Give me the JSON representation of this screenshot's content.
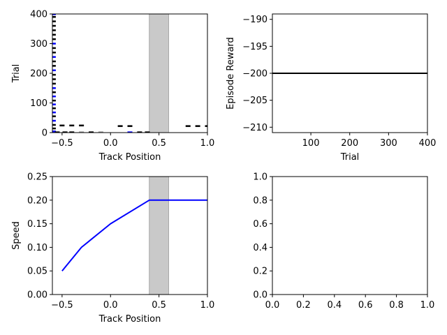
{
  "colors": {
    "mark_black": "#000000",
    "mark_blue": "#0000ff",
    "mark_gray": "#999999",
    "goal_region": "#c9c9c9",
    "goal_region_edge": "#a8a8a8"
  },
  "chart_data": [
    {
      "type": "scatter",
      "xlabel": "Track Position",
      "ylabel": "Trial",
      "xlim": [
        -0.6,
        1.0
      ],
      "ylim": [
        0,
        400
      ],
      "xticks": [
        -0.5,
        0.0,
        0.5,
        1.0
      ],
      "xtick_labels": [
        "−0.5",
        "0.0",
        "0.5",
        "1.0"
      ],
      "yticks": [
        0,
        100,
        200,
        300,
        400
      ],
      "ytick_labels": [
        "0",
        "100",
        "200",
        "300",
        "400"
      ],
      "shaded_span": [
        0.4,
        0.6
      ],
      "marker": "horizontal-dash",
      "points": [
        {
          "x": -0.59,
          "y": 4,
          "color": "blue"
        },
        {
          "x": -0.59,
          "y": 14,
          "color": "black"
        },
        {
          "x": -0.59,
          "y": 26,
          "color": "black"
        },
        {
          "x": -0.59,
          "y": 40,
          "color": "blue"
        },
        {
          "x": -0.59,
          "y": 55,
          "color": "black"
        },
        {
          "x": -0.59,
          "y": 68,
          "color": "blue"
        },
        {
          "x": -0.59,
          "y": 82,
          "color": "black"
        },
        {
          "x": -0.59,
          "y": 95,
          "color": "blue"
        },
        {
          "x": -0.59,
          "y": 108,
          "color": "black"
        },
        {
          "x": -0.59,
          "y": 122,
          "color": "blue"
        },
        {
          "x": -0.59,
          "y": 136,
          "color": "black"
        },
        {
          "x": -0.59,
          "y": 150,
          "color": "blue"
        },
        {
          "x": -0.59,
          "y": 165,
          "color": "black"
        },
        {
          "x": -0.59,
          "y": 180,
          "color": "black"
        },
        {
          "x": -0.59,
          "y": 195,
          "color": "black"
        },
        {
          "x": -0.59,
          "y": 210,
          "color": "blue"
        },
        {
          "x": -0.59,
          "y": 225,
          "color": "black"
        },
        {
          "x": -0.59,
          "y": 240,
          "color": "black"
        },
        {
          "x": -0.59,
          "y": 255,
          "color": "blue"
        },
        {
          "x": -0.59,
          "y": 270,
          "color": "black"
        },
        {
          "x": -0.59,
          "y": 285,
          "color": "black"
        },
        {
          "x": -0.59,
          "y": 300,
          "color": "blue"
        },
        {
          "x": -0.59,
          "y": 315,
          "color": "black"
        },
        {
          "x": -0.59,
          "y": 330,
          "color": "black"
        },
        {
          "x": -0.59,
          "y": 345,
          "color": "black"
        },
        {
          "x": -0.59,
          "y": 360,
          "color": "black"
        },
        {
          "x": -0.59,
          "y": 375,
          "color": "black"
        },
        {
          "x": -0.59,
          "y": 390,
          "color": "black"
        },
        {
          "x": -0.59,
          "y": 399,
          "color": "blue"
        },
        {
          "x": -0.55,
          "y": 1,
          "color": "black"
        },
        {
          "x": -0.47,
          "y": 1,
          "color": "black"
        },
        {
          "x": -0.4,
          "y": 1,
          "color": "black"
        },
        {
          "x": -0.3,
          "y": 1,
          "color": "gray"
        },
        {
          "x": -0.2,
          "y": 1,
          "color": "black"
        },
        {
          "x": -0.1,
          "y": 1,
          "color": "gray"
        },
        {
          "x": 0.2,
          "y": 1,
          "color": "blue"
        },
        {
          "x": 0.3,
          "y": 1,
          "color": "black"
        },
        {
          "x": 0.38,
          "y": 1,
          "color": "black"
        },
        {
          "x": -0.5,
          "y": 24,
          "color": "black"
        },
        {
          "x": -0.4,
          "y": 24,
          "color": "black"
        },
        {
          "x": -0.3,
          "y": 24,
          "color": "black"
        },
        {
          "x": 0.1,
          "y": 22,
          "color": "black"
        },
        {
          "x": 0.2,
          "y": 22,
          "color": "black"
        },
        {
          "x": 0.8,
          "y": 22,
          "color": "black"
        },
        {
          "x": 0.9,
          "y": 22,
          "color": "black"
        },
        {
          "x": 1.0,
          "y": 22,
          "color": "black"
        }
      ]
    },
    {
      "type": "line",
      "xlabel": "Trial",
      "ylabel": "Episode Reward",
      "xlim": [
        1,
        400
      ],
      "ylim": [
        -211,
        -189
      ],
      "xticks": [
        100,
        200,
        300,
        400
      ],
      "xtick_labels": [
        "100",
        "200",
        "300",
        "400"
      ],
      "yticks": [
        -210,
        -205,
        -200,
        -195,
        -190
      ],
      "ytick_labels": [
        "−210",
        "−205",
        "−200",
        "−195",
        "−190"
      ],
      "series": [
        {
          "x": [
            1,
            50,
            100,
            150,
            200,
            250,
            300,
            350,
            400
          ],
          "y": [
            -200,
            -200,
            -200,
            -200,
            -200,
            -200,
            -200,
            -200,
            -200
          ],
          "color": "black"
        }
      ]
    },
    {
      "type": "line",
      "xlabel": "Track Position",
      "ylabel": "Speed",
      "xlim": [
        -0.6,
        1.0
      ],
      "ylim": [
        0,
        0.25
      ],
      "xticks": [
        -0.5,
        0.0,
        0.5,
        1.0
      ],
      "xtick_labels": [
        "−0.5",
        "0.0",
        "0.5",
        "1.0"
      ],
      "yticks": [
        0,
        0.05,
        0.1,
        0.15,
        0.2,
        0.25
      ],
      "ytick_labels": [
        "0.00",
        "0.05",
        "0.10",
        "0.15",
        "0.20",
        "0.25"
      ],
      "shaded_span": [
        0.4,
        0.6
      ],
      "series": [
        {
          "x": [
            -0.5,
            -0.3,
            0.0,
            0.4,
            1.0
          ],
          "y": [
            0.05,
            0.1,
            0.15,
            0.2,
            0.2
          ],
          "color": "blue"
        }
      ]
    },
    {
      "type": "line",
      "xlabel": "",
      "ylabel": "",
      "xlim": [
        0,
        1
      ],
      "ylim": [
        0,
        1
      ],
      "xticks": [
        0,
        0.2,
        0.4,
        0.6,
        0.8,
        1.0
      ],
      "xtick_labels": [
        "0.0",
        "0.2",
        "0.4",
        "0.6",
        "0.8",
        "1.0"
      ],
      "yticks": [
        0,
        0.2,
        0.4,
        0.6,
        0.8,
        1.0
      ],
      "ytick_labels": [
        "0.0",
        "0.2",
        "0.4",
        "0.6",
        "0.8",
        "1.0"
      ],
      "series": []
    }
  ]
}
